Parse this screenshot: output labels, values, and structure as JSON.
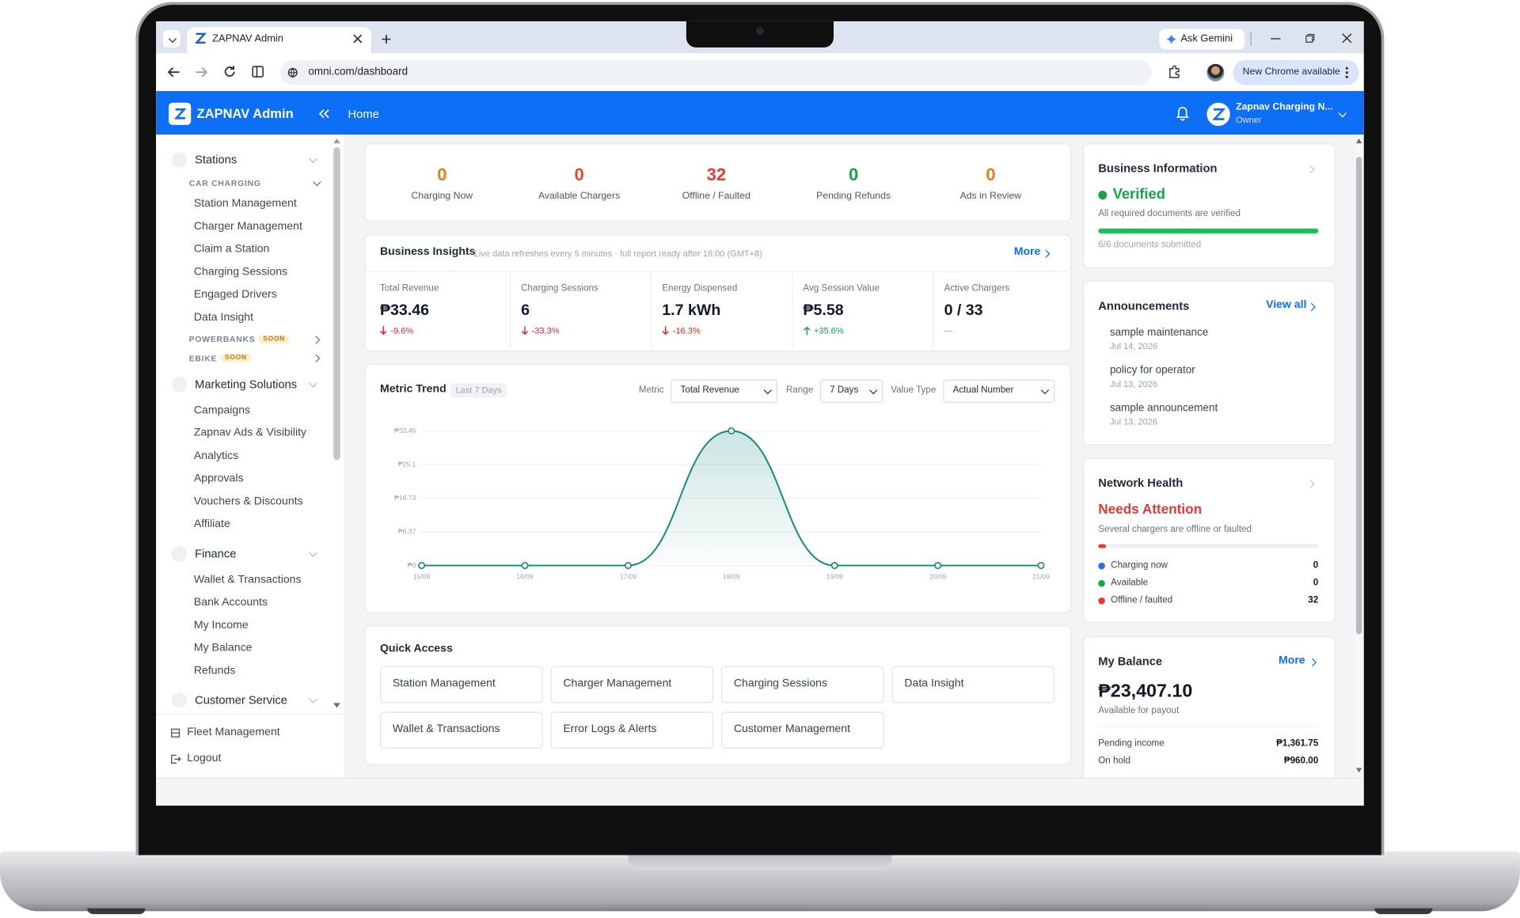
{
  "browser": {
    "tab_title": "ZAPNAV Admin",
    "ask_gemini": "Ask Gemini",
    "url": "omni.com/dashboard",
    "update_button": "New Chrome available"
  },
  "header": {
    "brand": "ZAPNAV Admin",
    "breadcrumb": "Home",
    "account_name": "Zapnav Charging N...",
    "account_role": "Owner"
  },
  "sidebar": {
    "sections": [
      {
        "title": "Stations",
        "groups": [
          {
            "title": "CAR CHARGING",
            "items": [
              "Station Management",
              "Charger Management",
              "Claim a Station",
              "Charging Sessions",
              "Engaged Drivers",
              "Data Insight"
            ]
          }
        ],
        "coming": [
          {
            "title": "POWERBANKS",
            "badge": "SOON"
          },
          {
            "title": "EBIKE",
            "badge": "SOON"
          }
        ]
      },
      {
        "title": "Marketing Solutions",
        "items": [
          "Campaigns",
          "Zapnav Ads & Visibility",
          "Analytics",
          "Approvals",
          "Vouchers & Discounts",
          "Affiliate"
        ]
      },
      {
        "title": "Finance",
        "items": [
          "Wallet & Transactions",
          "Bank Accounts",
          "My Income",
          "My Balance",
          "Refunds"
        ]
      },
      {
        "title": "Customer Service"
      }
    ],
    "footer": [
      "Fleet Management",
      "Logout"
    ]
  },
  "summary": [
    {
      "value": 0,
      "label": "Charging Now"
    },
    {
      "value": 0,
      "label": "Available Chargers"
    },
    {
      "value": 32,
      "label": "Offline / Faulted"
    },
    {
      "value": 0,
      "label": "Pending Refunds"
    },
    {
      "value": 0,
      "label": "Ads in Review"
    }
  ],
  "insights": {
    "title": "Business Insights",
    "note": "Live data refreshes every 5 minutes · full report ready after 16:00 (GMT+8)",
    "more": "More",
    "metrics": [
      {
        "label": "Total Revenue",
        "value": "₱33.46",
        "change": "-9.6%"
      },
      {
        "label": "Charging Sessions",
        "value": 6,
        "change": "-33.3%"
      },
      {
        "label": "Energy Dispensed",
        "value": "1.7 kWh",
        "change": "-16.3%"
      },
      {
        "label": "Avg Session Value",
        "value": "₱5.58",
        "change": "+35.6%"
      },
      {
        "label": "Active Chargers",
        "value": "0 / 33",
        "change": "—"
      }
    ]
  },
  "trend_controls": {
    "badge": "Last 7 Days",
    "metric_label": "Metric",
    "metric": "Total Revenue",
    "range_label": "Range",
    "range": "7 Days",
    "value_type_label": "Value Type",
    "value_type": "Actual Number"
  },
  "chart_data": {
    "type": "line",
    "title": "Metric Trend",
    "categories": [
      "15/09",
      "16/09",
      "17/09",
      "18/09",
      "19/09",
      "20/09",
      "21/09"
    ],
    "values": [
      0,
      0,
      0,
      33.46,
      0,
      0,
      0
    ],
    "color": "#16897b",
    "ylim": [
      0,
      33.46
    ],
    "yticks": [
      {
        "value": 0,
        "label": "₱0"
      },
      {
        "value": 8.37,
        "label": "₱8.37"
      },
      {
        "value": 16.73,
        "label": "₱16.73"
      },
      {
        "value": 25.1,
        "label": "₱25.1"
      },
      {
        "value": 33.46,
        "label": "₱33.46"
      }
    ],
    "grid": true
  },
  "quick_access": {
    "title": "Quick Access",
    "links": [
      "Station Management",
      "Charger Management",
      "Charging Sessions",
      "Data Insight",
      "Wallet & Transactions",
      "Error Logs & Alerts",
      "Customer Management"
    ]
  },
  "business_info": {
    "title": "Business Information",
    "status": "Verified",
    "note": "All required documents are verified",
    "progress_note": "6/6 documents submitted"
  },
  "announcements": {
    "title": "Announcements",
    "view_all": "View all",
    "items": [
      {
        "title": "sample maintenance",
        "date": "Jul 14, 2026"
      },
      {
        "title": "policy for operator",
        "date": "Jul 13, 2026"
      },
      {
        "title": "sample announcement",
        "date": "Jul 13, 2026"
      }
    ]
  },
  "network_health": {
    "title": "Network Health",
    "status": "Needs Attention",
    "note": "Several chargers are offline or faulted",
    "rows": [
      {
        "label": "Charging now",
        "value": 0
      },
      {
        "label": "Available",
        "value": 0
      },
      {
        "label": "Offline / faulted",
        "value": 32
      }
    ]
  },
  "balance": {
    "title": "My Balance",
    "more": "More",
    "amount": "₱23,407.10",
    "note": "Available for payout",
    "rows": [
      {
        "label": "Pending income",
        "value": "₱1,361.75"
      },
      {
        "label": "On hold",
        "value": "₱960.00"
      }
    ]
  }
}
